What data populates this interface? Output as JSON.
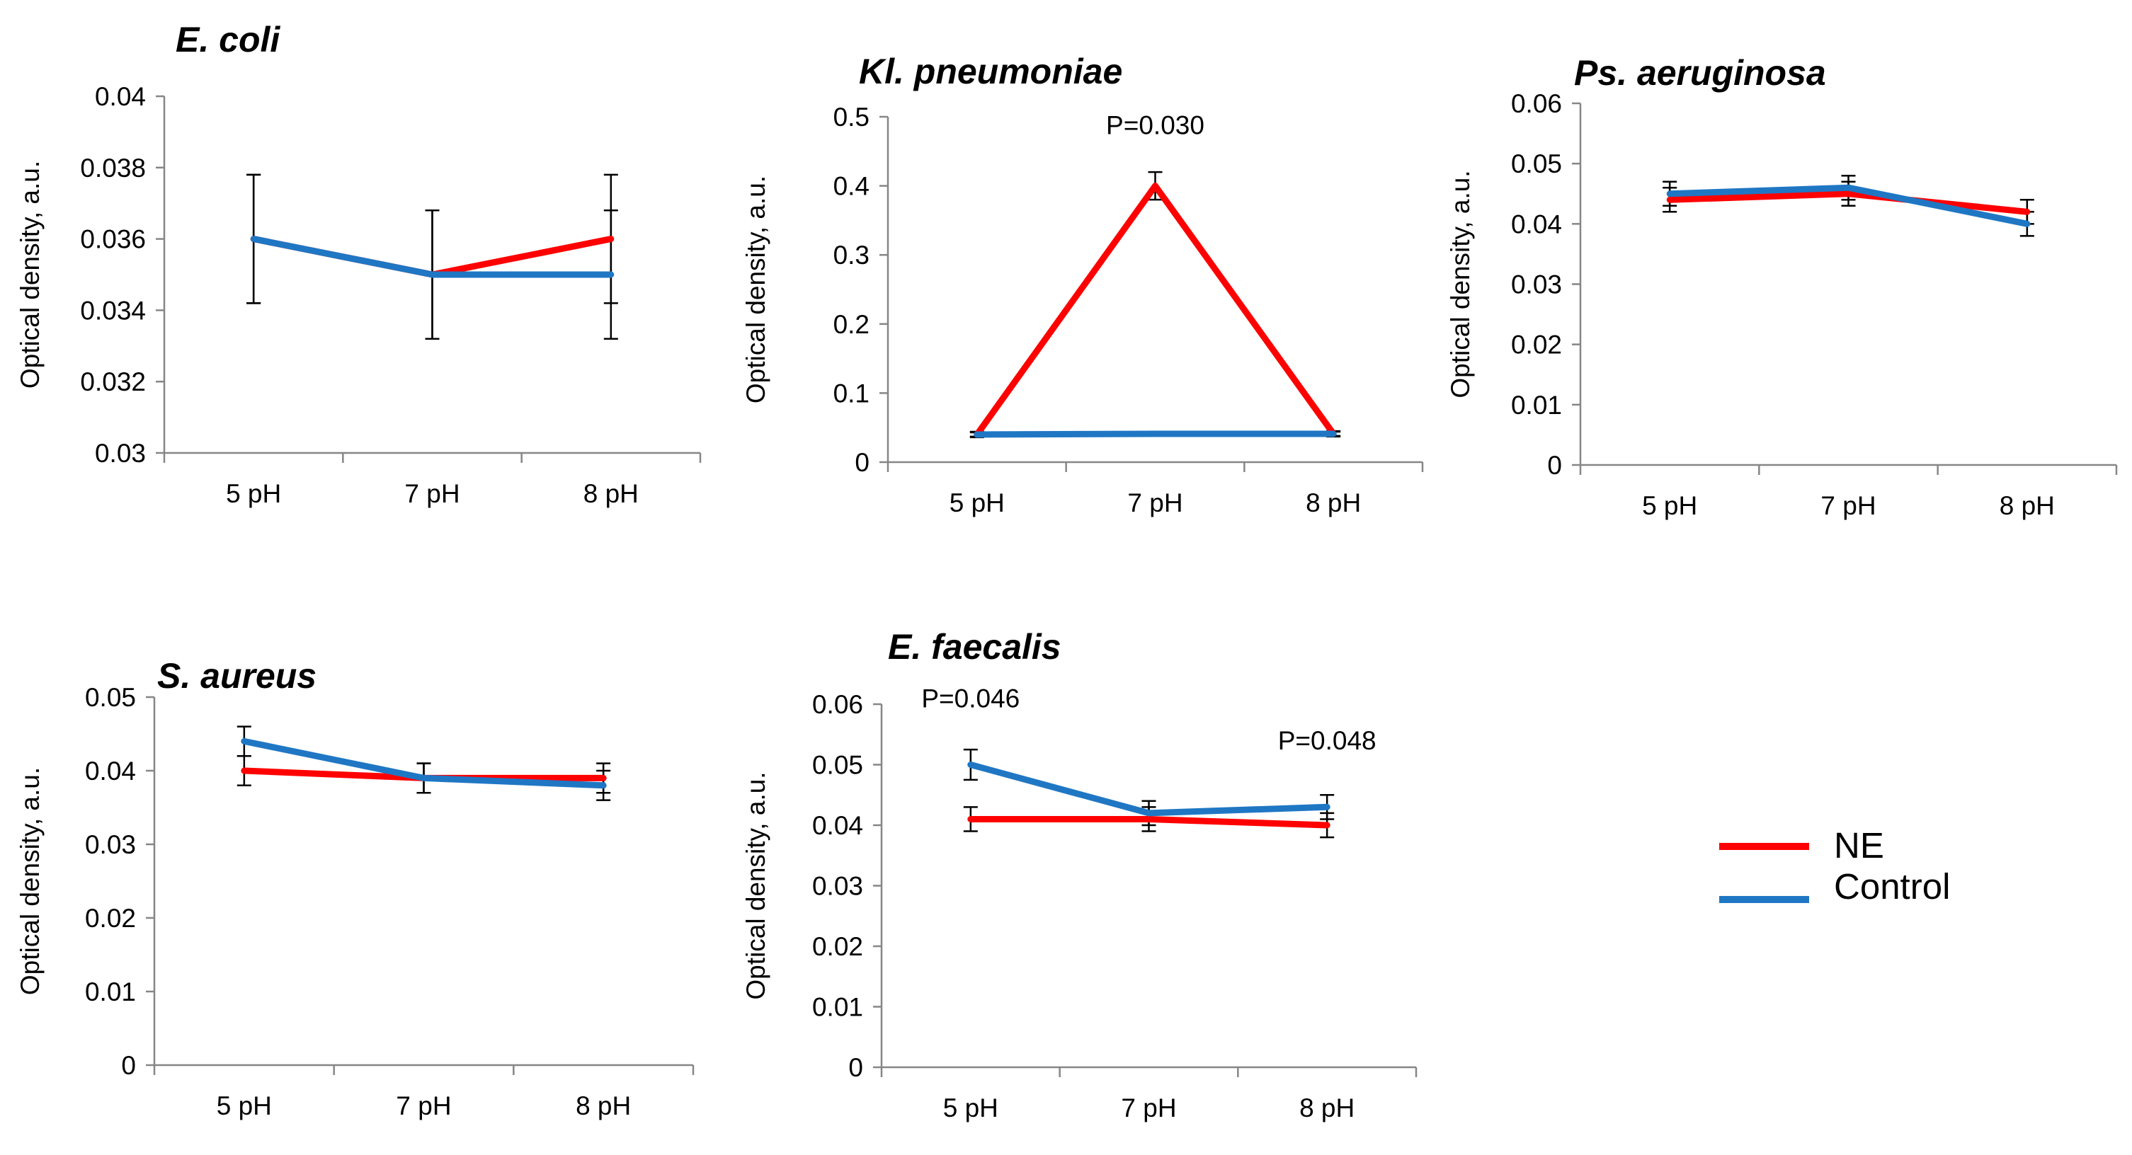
{
  "colors": {
    "ne": "#ff0000",
    "control": "#1f77c4",
    "axis": "#868686",
    "errorbar": "#000000"
  },
  "legend": {
    "position": "right",
    "items": [
      {
        "label": "NE",
        "color": "#ff0000"
      },
      {
        "label": "Control",
        "color": "#1f77c4"
      }
    ]
  },
  "chart_data": [
    {
      "type": "line",
      "title": "E. coli",
      "ylabel": "Optical density, a.u.",
      "xlabel": "",
      "categories": [
        "5 pH",
        "7 pH",
        "8 pH"
      ],
      "ylim": [
        0.03,
        0.04
      ],
      "yticks": [
        "0.03",
        "0.032",
        "0.034",
        "0.036",
        "0.038",
        "0.04"
      ],
      "annotations": [],
      "series": [
        {
          "name": "NE",
          "values": [
            0.036,
            0.035,
            0.036
          ],
          "errors": [
            0.0018,
            0.0018,
            0.0018
          ]
        },
        {
          "name": "Control",
          "values": [
            0.036,
            0.035,
            0.035
          ],
          "errors": [
            0.0018,
            0.0018,
            0.0018
          ]
        }
      ]
    },
    {
      "type": "line",
      "title": "Kl. pneumoniae",
      "ylabel": "Optical density, a.u.",
      "xlabel": "",
      "categories": [
        "5 pH",
        "7 pH",
        "8 pH"
      ],
      "ylim": [
        0,
        0.5
      ],
      "yticks": [
        "0",
        "0.1",
        "0.2",
        "0.3",
        "0.4",
        "0.5"
      ],
      "annotations": [
        {
          "text": "P=0.030",
          "category": 1,
          "y": 0.475
        }
      ],
      "series": [
        {
          "name": "NE",
          "values": [
            0.04,
            0.4,
            0.041
          ],
          "errors": [
            0.004,
            0.02,
            0.004
          ]
        },
        {
          "name": "Control",
          "values": [
            0.04,
            0.041,
            0.041
          ],
          "errors": [
            0.003,
            0.003,
            0.003
          ]
        }
      ]
    },
    {
      "type": "line",
      "title": "Ps. aeruginosa",
      "ylabel": "Optical density, a.u.",
      "xlabel": "",
      "categories": [
        "5 pH",
        "7 pH",
        "8 pH"
      ],
      "ylim": [
        0,
        0.06
      ],
      "yticks": [
        "0",
        "0.01",
        "0.02",
        "0.03",
        "0.04",
        "0.05",
        "0.06"
      ],
      "annotations": [],
      "series": [
        {
          "name": "NE",
          "values": [
            0.044,
            0.045,
            0.042
          ],
          "errors": [
            0.002,
            0.002,
            0.002
          ]
        },
        {
          "name": "Control",
          "values": [
            0.045,
            0.046,
            0.04
          ],
          "errors": [
            0.002,
            0.002,
            0.002
          ]
        }
      ]
    },
    {
      "type": "line",
      "title": "S. aureus",
      "ylabel": "Optical density, a.u.",
      "xlabel": "",
      "categories": [
        "5 pH",
        "7 pH",
        "8 pH"
      ],
      "ylim": [
        0,
        0.05
      ],
      "yticks": [
        "0",
        "0.01",
        "0.02",
        "0.03",
        "0.04",
        "0.05"
      ],
      "annotations": [],
      "series": [
        {
          "name": "NE",
          "values": [
            0.04,
            0.039,
            0.039
          ],
          "errors": [
            0.002,
            0.002,
            0.002
          ]
        },
        {
          "name": "Control",
          "values": [
            0.044,
            0.039,
            0.038
          ],
          "errors": [
            0.002,
            0.002,
            0.002
          ]
        }
      ]
    },
    {
      "type": "line",
      "title": "E. faecalis",
      "ylabel": "Optical density, a.u.",
      "xlabel": "",
      "categories": [
        "5 pH",
        "7 pH",
        "8 pH"
      ],
      "ylim": [
        0,
        0.06
      ],
      "yticks": [
        "0",
        "0.01",
        "0.02",
        "0.03",
        "0.04",
        "0.05",
        "0.06"
      ],
      "annotations": [
        {
          "text": "P=0.046",
          "category": 0,
          "y": 0.0595
        },
        {
          "text": "P=0.048",
          "category": 2,
          "y": 0.0525
        }
      ],
      "series": [
        {
          "name": "NE",
          "values": [
            0.041,
            0.041,
            0.04
          ],
          "errors": [
            0.002,
            0.002,
            0.002
          ]
        },
        {
          "name": "Control",
          "values": [
            0.05,
            0.042,
            0.043
          ],
          "errors": [
            0.0025,
            0.002,
            0.002
          ]
        }
      ]
    }
  ]
}
